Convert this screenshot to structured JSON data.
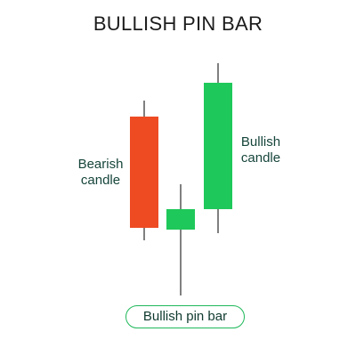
{
  "title": "BULLISH PIN BAR",
  "labels": {
    "bearish": "Bearish\ncandle",
    "bullish": "Bullish\ncandle"
  },
  "pill_label": "Bullish pin bar",
  "colors": {
    "bearish": "#ee4b23",
    "bullish": "#1fc85a",
    "wick": "#555555",
    "label_text": "#16453b",
    "pill_border": "#1fb85a"
  }
}
